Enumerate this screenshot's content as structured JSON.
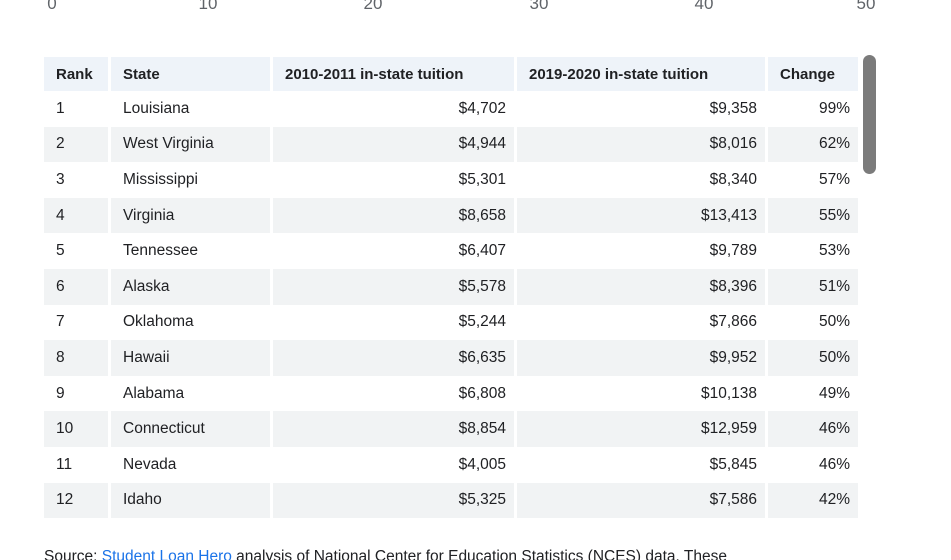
{
  "axis": {
    "ticks": [
      "0",
      "10",
      "20",
      "30",
      "40",
      "50"
    ]
  },
  "chart_data": {
    "type": "table",
    "columns": [
      {
        "label": "Rank",
        "align": "left"
      },
      {
        "label": "State",
        "align": "left"
      },
      {
        "label": "2010-2011 in-state tuition",
        "align": "right"
      },
      {
        "label": "2019-2020 in-state tuition",
        "align": "right"
      },
      {
        "label": "Change",
        "align": "right"
      }
    ],
    "rows": [
      {
        "rank": "1",
        "state": "Louisiana",
        "tuition_2010": "$4,702",
        "tuition_2019": "$9,358",
        "change": "99%"
      },
      {
        "rank": "2",
        "state": "West Virginia",
        "tuition_2010": "$4,944",
        "tuition_2019": "$8,016",
        "change": "62%"
      },
      {
        "rank": "3",
        "state": "Mississippi",
        "tuition_2010": "$5,301",
        "tuition_2019": "$8,340",
        "change": "57%"
      },
      {
        "rank": "4",
        "state": "Virginia",
        "tuition_2010": "$8,658",
        "tuition_2019": "$13,413",
        "change": "55%"
      },
      {
        "rank": "5",
        "state": "Tennessee",
        "tuition_2010": "$6,407",
        "tuition_2019": "$9,789",
        "change": "53%"
      },
      {
        "rank": "6",
        "state": "Alaska",
        "tuition_2010": "$5,578",
        "tuition_2019": "$8,396",
        "change": "51%"
      },
      {
        "rank": "7",
        "state": "Oklahoma",
        "tuition_2010": "$5,244",
        "tuition_2019": "$7,866",
        "change": "50%"
      },
      {
        "rank": "8",
        "state": "Hawaii",
        "tuition_2010": "$6,635",
        "tuition_2019": "$9,952",
        "change": "50%"
      },
      {
        "rank": "9",
        "state": "Alabama",
        "tuition_2010": "$6,808",
        "tuition_2019": "$10,138",
        "change": "49%"
      },
      {
        "rank": "10",
        "state": "Connecticut",
        "tuition_2010": "$8,854",
        "tuition_2019": "$12,959",
        "change": "46%"
      },
      {
        "rank": "11",
        "state": "Nevada",
        "tuition_2010": "$4,005",
        "tuition_2019": "$5,845",
        "change": "46%"
      },
      {
        "rank": "12",
        "state": "Idaho",
        "tuition_2010": "$5,325",
        "tuition_2019": "$7,586",
        "change": "42%"
      }
    ]
  },
  "source": {
    "prefix": "Source: ",
    "link_text": "Student Loan Hero",
    "suffix": " analysis of National Center for Education Statistics (NCES) data. These"
  },
  "colors": {
    "header_bg": "#eef3f9",
    "stripe_bg": "#f1f3f4",
    "text": "#202124",
    "axis_text": "#5f6368",
    "link": "#1a73e8",
    "scrollbar_thumb": "#7b7b7b"
  }
}
